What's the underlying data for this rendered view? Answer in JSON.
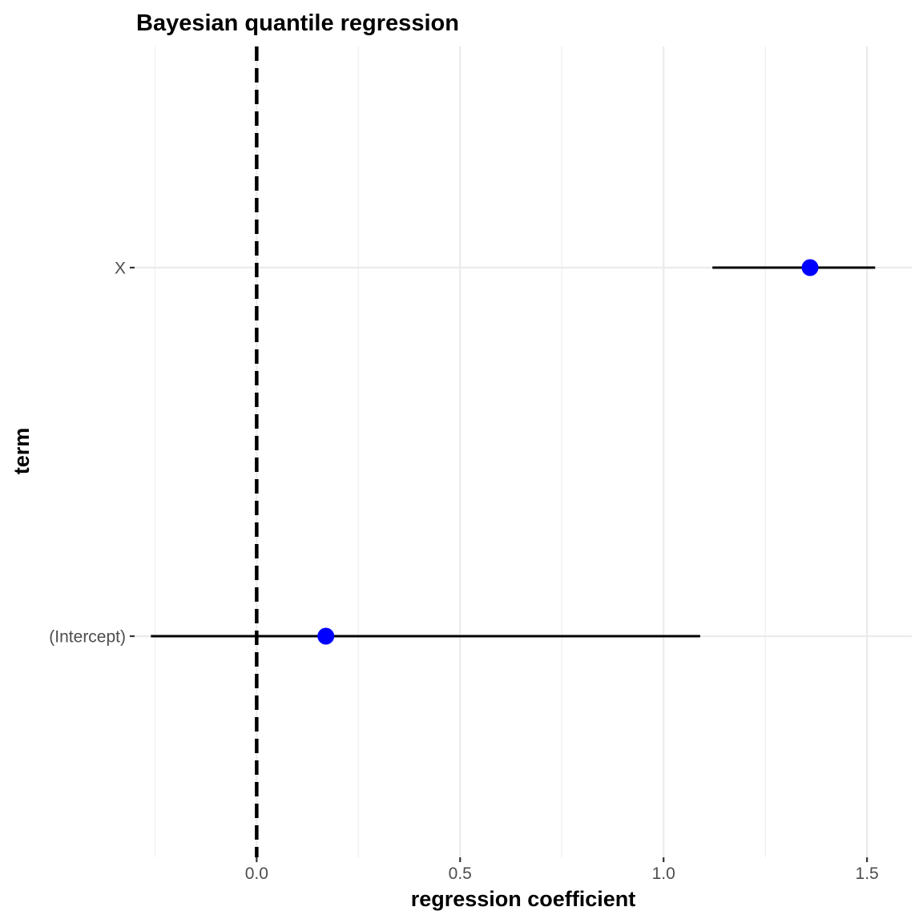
{
  "chart_data": {
    "type": "scatter",
    "title": "Bayesian quantile regression",
    "xlabel": "regression coefficient",
    "ylabel": "term",
    "xlim": [
      -0.3,
      1.61
    ],
    "x_ticks": [
      "0.0",
      "0.5",
      "1.0",
      "1.5"
    ],
    "reference_line": {
      "x": 0,
      "style": "dashed"
    },
    "categories": [
      "(Intercept)",
      "X"
    ],
    "series": [
      {
        "estimate": [
          0.17,
          1.36
        ],
        "lower": [
          -0.26,
          1.12
        ],
        "upper": [
          1.09,
          1.52
        ]
      }
    ],
    "point_color": "#0000ff",
    "interval_color": "#000000",
    "grid": true,
    "legend": "none"
  }
}
